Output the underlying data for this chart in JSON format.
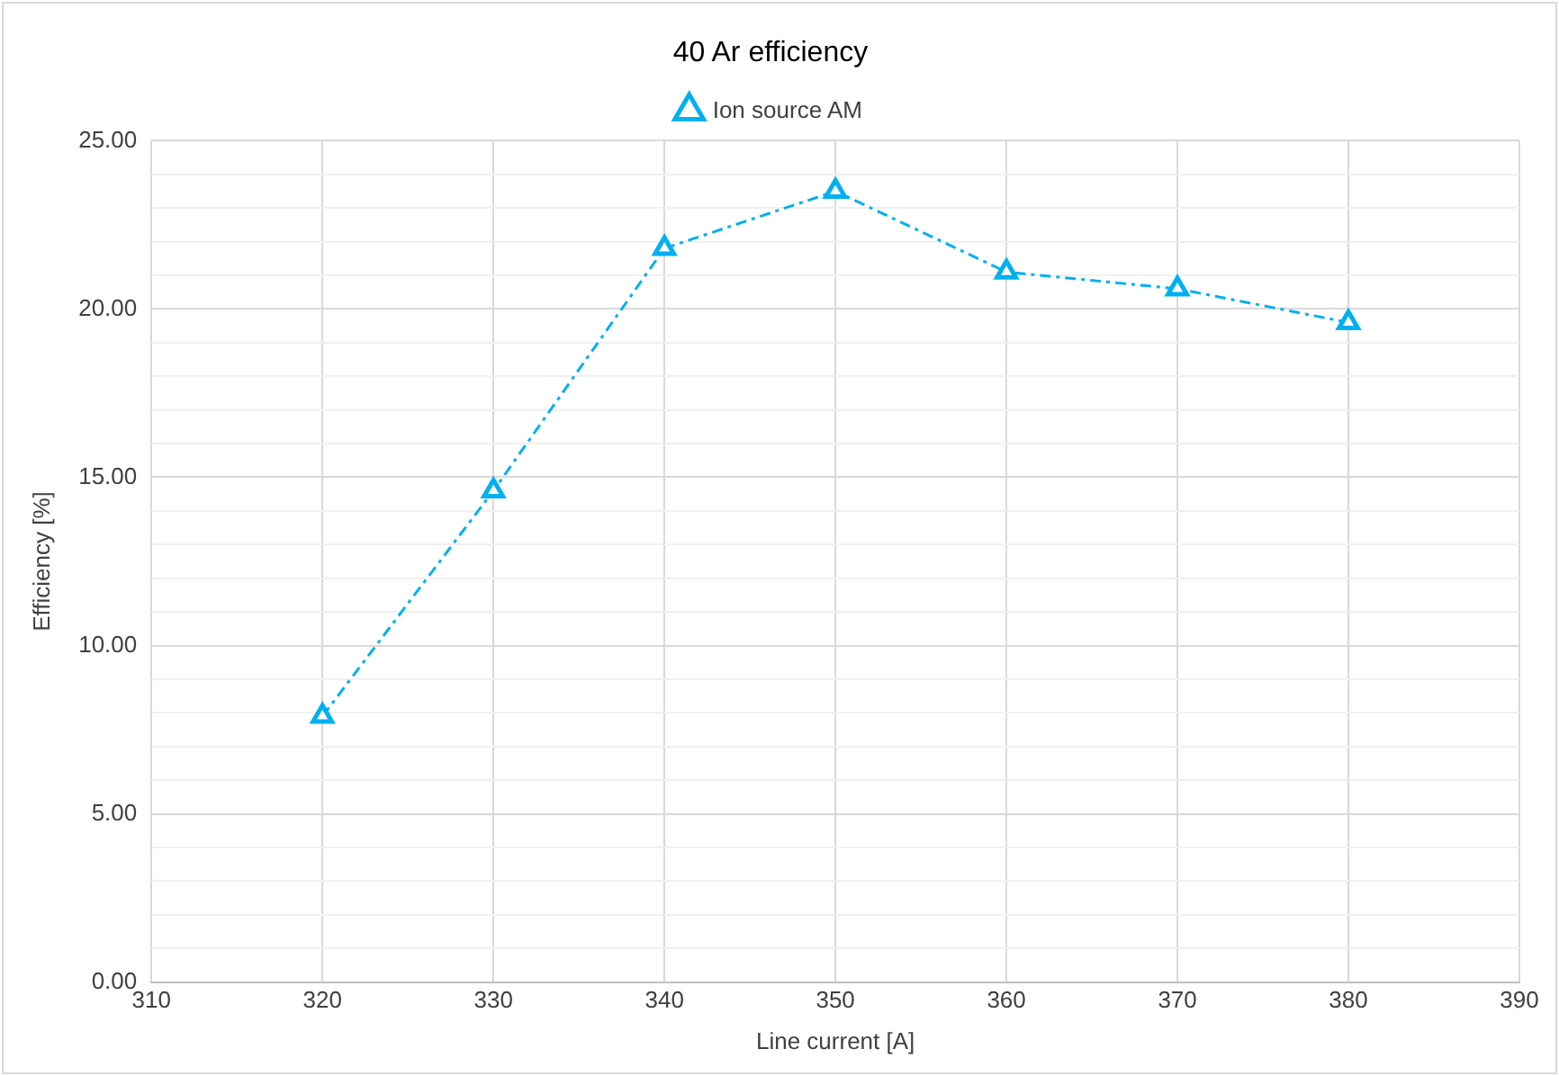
{
  "chart_data": {
    "type": "line",
    "title": "40 Ar efficiency",
    "xlabel": "Line current [A]",
    "ylabel": "Efficiency [%]",
    "x": [
      320,
      330,
      340,
      350,
      360,
      370,
      380
    ],
    "series": [
      {
        "name": "Ion source AM",
        "color": "#00b0f0",
        "values": [
          7.9,
          14.6,
          21.8,
          23.5,
          21.1,
          20.6,
          19.6
        ]
      }
    ],
    "xlim": [
      310,
      390
    ],
    "xticks": [
      310,
      320,
      330,
      340,
      350,
      360,
      370,
      380,
      390
    ],
    "ylim": [
      0,
      25
    ],
    "yticks": [
      {
        "value": 0,
        "label": "0.00"
      },
      {
        "value": 1,
        "label": null
      },
      {
        "value": 2,
        "label": null
      },
      {
        "value": 3,
        "label": null
      },
      {
        "value": 4,
        "label": null
      },
      {
        "value": 5,
        "label": "5.00"
      },
      {
        "value": 6,
        "label": null
      },
      {
        "value": 7,
        "label": null
      },
      {
        "value": 8,
        "label": null
      },
      {
        "value": 9,
        "label": null
      },
      {
        "value": 10,
        "label": "10.00"
      },
      {
        "value": 11,
        "label": null
      },
      {
        "value": 12,
        "label": null
      },
      {
        "value": 13,
        "label": null
      },
      {
        "value": 14,
        "label": null
      },
      {
        "value": 15,
        "label": "15.00"
      },
      {
        "value": 16,
        "label": null
      },
      {
        "value": 17,
        "label": null
      },
      {
        "value": 18,
        "label": null
      },
      {
        "value": 19,
        "label": null
      },
      {
        "value": 20,
        "label": "20.00"
      },
      {
        "value": 21,
        "label": null
      },
      {
        "value": 22,
        "label": null
      },
      {
        "value": 23,
        "label": null
      },
      {
        "value": 24,
        "label": null
      },
      {
        "value": 25,
        "label": "25.00"
      }
    ],
    "grid": true,
    "legend": "top",
    "marker": "triangle",
    "line_style": "dashed"
  }
}
